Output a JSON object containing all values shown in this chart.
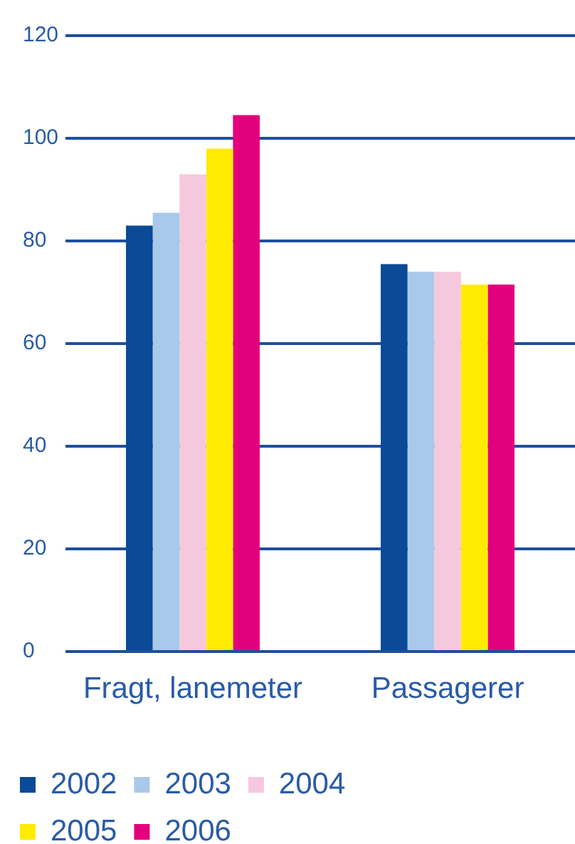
{
  "chart_data": {
    "type": "bar",
    "categories": [
      "Fragt, lanemeter",
      "Passagerer"
    ],
    "series": [
      {
        "name": "2002",
        "color": "#0a4a96",
        "values": [
          83,
          75.5
        ]
      },
      {
        "name": "2003",
        "color": "#a9c9eb",
        "values": [
          85.5,
          74
        ]
      },
      {
        "name": "2004",
        "color": "#f6c8dd",
        "values": [
          93,
          74
        ]
      },
      {
        "name": "2005",
        "color": "#ffec00",
        "values": [
          98,
          71.5
        ]
      },
      {
        "name": "2006",
        "color": "#e3007c",
        "values": [
          104.5,
          71.5
        ]
      }
    ],
    "ylim": [
      0,
      120
    ],
    "yticks": [
      0,
      20,
      40,
      60,
      80,
      100,
      120
    ],
    "grid": "y",
    "legend": "bottom"
  }
}
